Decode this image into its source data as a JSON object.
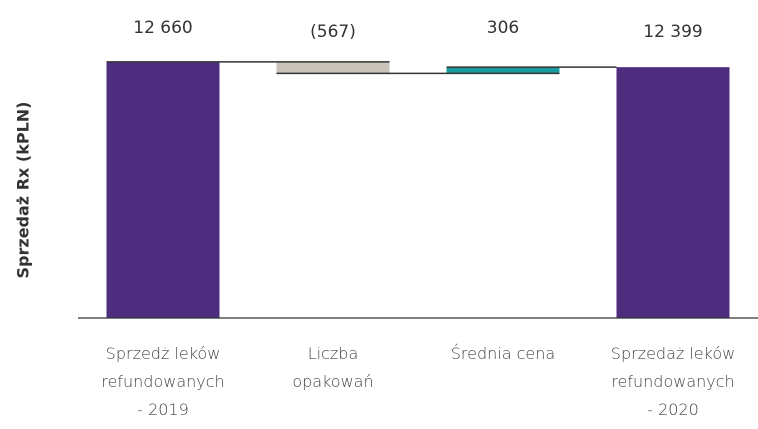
{
  "chart_data": {
    "type": "waterfall",
    "y_label": "Sprzedaż Rx (kPLN)",
    "categories": [
      "Sprzedż leków\nrefundowanych\n- 2019",
      "Liczba\nopakowań",
      "Średnia cena",
      "Sprzedaż leków\nrefundowanych\n- 2020"
    ],
    "values": [
      12660,
      -567,
      306,
      12399
    ],
    "value_labels": [
      "12 660",
      "(567)",
      "306",
      "12 399"
    ],
    "measure": [
      "absolute",
      "relative",
      "relative",
      "total"
    ],
    "colors": [
      "#4e2d7f",
      "#c9c3b9",
      "#1a9ba1",
      "#4e2d7f"
    ],
    "ylim": [
      0,
      13000
    ]
  }
}
